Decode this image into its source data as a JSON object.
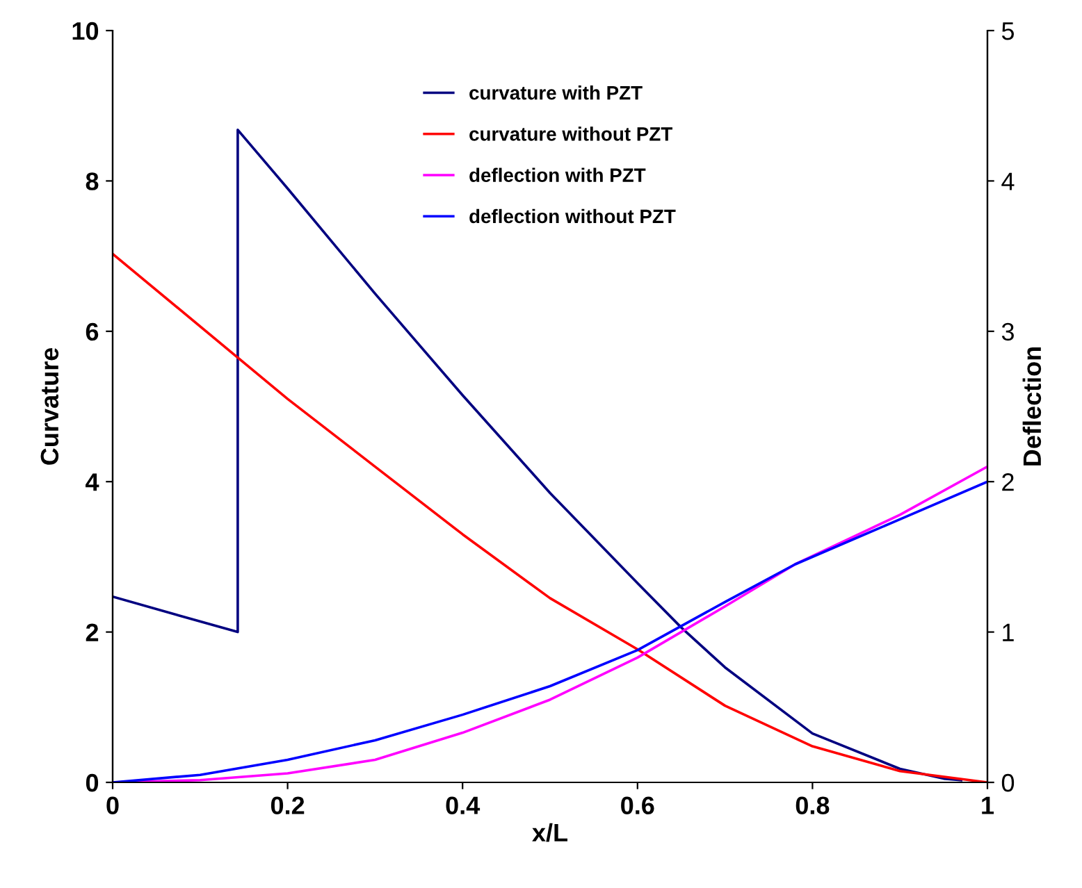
{
  "chart_data": {
    "type": "line",
    "xlabel": "x/L",
    "ylabel": "Curvature",
    "y2label": "Deflection",
    "xlim": [
      0,
      1
    ],
    "xticks": [
      0,
      0.2,
      0.4,
      0.6,
      0.8,
      1
    ],
    "ylim": [
      0,
      10
    ],
    "yticks": [
      0,
      2,
      4,
      6,
      8,
      10
    ],
    "y2lim": [
      0,
      5
    ],
    "y2ticks": [
      0,
      1,
      2,
      3,
      4,
      5
    ],
    "grid": false,
    "legend": "top",
    "marker": "none",
    "line_style": "solid",
    "series": [
      {
        "name": "curvature with PZT",
        "color": "#000080",
        "x": [
          0,
          0.143,
          0.143,
          0.2,
          0.3,
          0.4,
          0.5,
          0.6,
          0.65,
          0.7,
          0.8,
          0.9,
          0.95,
          0.97
        ],
        "values": [
          2.47,
          2.0,
          8.68,
          7.9,
          6.5,
          5.15,
          3.85,
          2.65,
          2.06,
          1.53,
          0.65,
          0.18,
          0.05,
          0.03
        ]
      },
      {
        "name": "curvature without PZT",
        "color": "#ff0000",
        "x": [
          0,
          0.143,
          0.2,
          0.3,
          0.4,
          0.5,
          0.6,
          0.7,
          0.8,
          0.9,
          1.0
        ],
        "values": [
          7.03,
          5.65,
          5.1,
          4.2,
          3.3,
          2.45,
          1.77,
          1.02,
          0.48,
          0.15,
          0
        ]
      },
      {
        "name": "deflection with PZT",
        "color": "#ff00ff",
        "axis": "y2",
        "x": [
          0,
          0.1,
          0.2,
          0.3,
          0.4,
          0.5,
          0.6,
          0.7,
          0.78,
          0.9,
          1.0
        ],
        "values": [
          0,
          0.015,
          0.06,
          0.15,
          0.33,
          0.55,
          0.83,
          1.17,
          1.45,
          1.78,
          2.1
        ]
      },
      {
        "name": "deflection without PZT",
        "color": "#0000ff",
        "axis": "y2",
        "x": [
          0,
          0.1,
          0.2,
          0.3,
          0.4,
          0.5,
          0.6,
          0.7,
          0.78,
          0.9,
          1.0
        ],
        "values": [
          0,
          0.05,
          0.15,
          0.28,
          0.45,
          0.64,
          0.88,
          1.2,
          1.45,
          1.75,
          2.0
        ]
      }
    ]
  }
}
